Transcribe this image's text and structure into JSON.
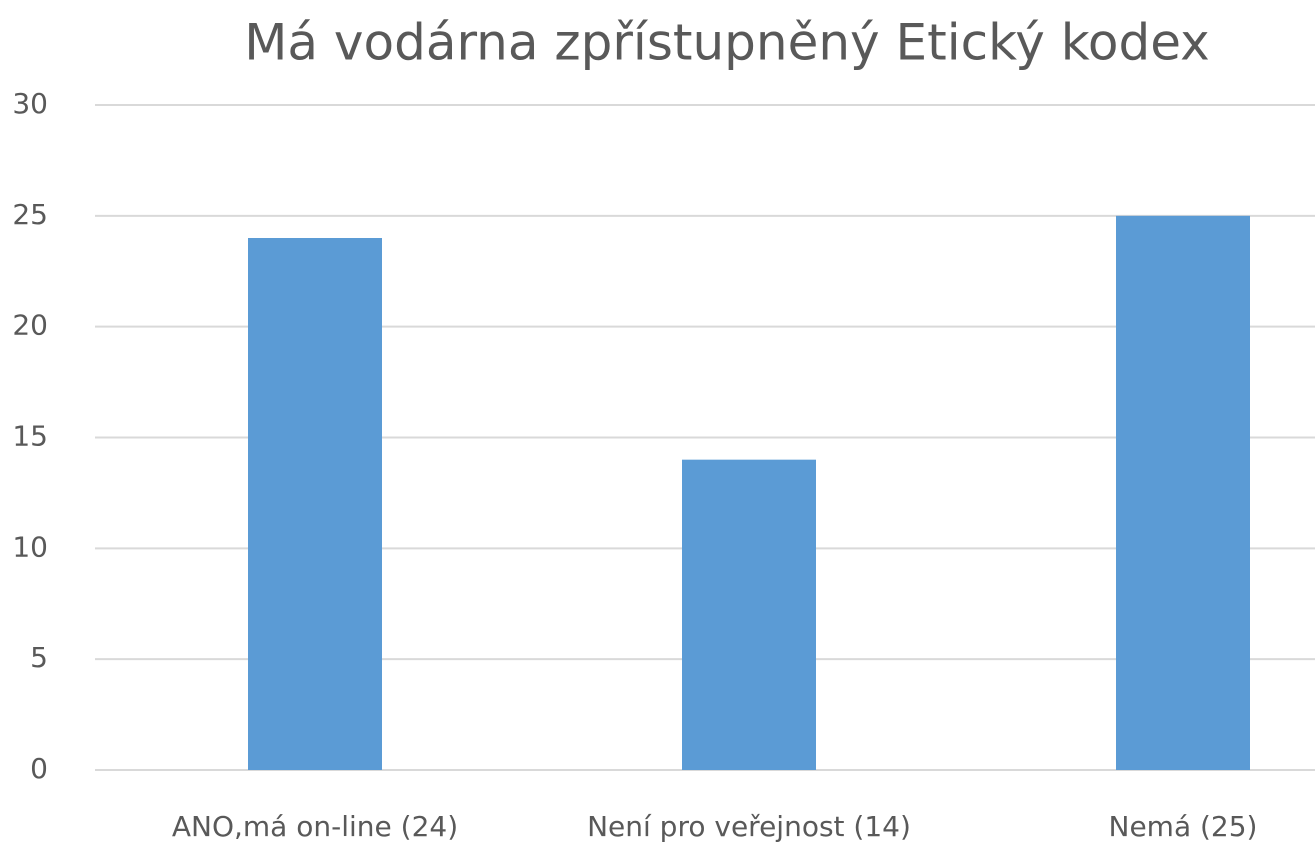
{
  "chart_data": {
    "type": "bar",
    "title": "Má vodárna zpřístupněný Etický kodex",
    "categories": [
      "ANO,má on-line (24)",
      "Není pro veřejnost (14)",
      "Nemá (25)"
    ],
    "values": [
      24,
      14,
      25
    ],
    "color": "#5b9bd5",
    "ylim": [
      0,
      30
    ],
    "yticks": [
      0,
      5,
      10,
      15,
      20,
      25,
      30
    ],
    "grid": true
  }
}
